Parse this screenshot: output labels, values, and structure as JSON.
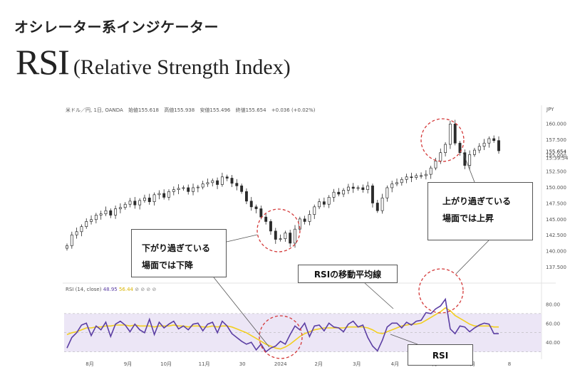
{
  "header": {
    "subtitle": "オシレーター系インジケーター",
    "title_main": "RSI",
    "title_sub": "(Relative Strength Index)"
  },
  "chart_info": {
    "symbol": "米ドル／円, 1日, OANDA",
    "open": "始値155.618",
    "high": "高値155.938",
    "low": "安値155.496",
    "close": "終値155.654",
    "change": "+0.036 (+0.02%)",
    "currency": "JPY",
    "last_price": "155.654",
    "countdown": "15:39:54"
  },
  "rsi_info": {
    "label": "RSI (14, close)",
    "rsi_value": "48.95",
    "ma_value": "56.44",
    "icons": "⊘ ⊘ ⊘ ⊘"
  },
  "callouts": {
    "oversold": [
      "下がり過ぎている",
      "場面では下降"
    ],
    "overbought": [
      "上がり過ぎている",
      "場面では上昇"
    ],
    "rsi_ma": "RSIの移動平均線",
    "rsi": "RSI"
  },
  "colors": {
    "candle": "#2b2b2b",
    "rsi_line": "#5b3ea3",
    "rsi_ma": "#f2cf1e",
    "band_fill": "#ece6f6",
    "circle": "#d43a3a"
  },
  "chart_data": [
    {
      "type": "candlestick",
      "y_ticks": [
        137.5,
        140.0,
        142.5,
        145.0,
        147.5,
        150.0,
        152.5,
        155.0,
        157.5,
        160.0
      ],
      "ylim": [
        136.5,
        161.5
      ],
      "x_ticks": [
        "8月",
        "9月",
        "10月",
        "11月",
        "30",
        "2024",
        "2月",
        "3月",
        "4月",
        "5月",
        "6月",
        "8"
      ],
      "close_series": [
        140.8,
        142.5,
        143.0,
        143.8,
        144.6,
        144.9,
        145.6,
        145.8,
        146.3,
        145.6,
        146.6,
        146.8,
        147.3,
        147.8,
        147.2,
        147.9,
        148.3,
        147.7,
        148.8,
        149.0,
        148.4,
        149.3,
        149.6,
        149.8,
        149.9,
        149.3,
        149.9,
        150.0,
        150.5,
        150.7,
        151.0,
        150.4,
        151.6,
        151.4,
        150.6,
        150.2,
        149.3,
        147.8,
        146.9,
        146.6,
        145.3,
        144.6,
        143.1,
        141.8,
        141.9,
        142.8,
        141.2,
        143.4,
        145.0,
        144.6,
        145.7,
        146.9,
        147.7,
        147.3,
        148.4,
        149.2,
        148.9,
        149.5,
        150.0,
        149.8,
        149.9,
        149.6,
        150.2,
        147.5,
        146.3,
        148.3,
        149.9,
        150.5,
        150.7,
        151.2,
        151.6,
        151.5,
        151.8,
        151.8,
        152.0,
        153.0,
        154.1,
        155.4,
        156.7,
        159.9,
        156.9,
        155.4,
        153.4,
        155.1,
        155.8,
        156.4,
        156.9,
        157.6,
        157.3,
        155.7
      ],
      "last_close": 155.654
    },
    {
      "type": "line",
      "title": "RSI (14, close)",
      "y_ticks": [
        40.0,
        60.0,
        80.0
      ],
      "ylim": [
        26,
        90
      ],
      "overbought": 70,
      "oversold": 30,
      "series": [
        {
          "name": "RSI",
          "values": [
            34,
            45,
            50,
            58,
            60,
            47,
            57,
            53,
            61,
            46,
            59,
            62,
            58,
            51,
            59,
            53,
            50,
            64,
            48,
            61,
            55,
            59,
            62,
            54,
            57,
            53,
            59,
            60,
            52,
            59,
            61,
            50,
            62,
            57,
            49,
            45,
            41,
            38,
            40,
            32,
            38,
            30,
            34,
            36,
            41,
            38,
            48,
            57,
            53,
            60,
            46,
            57,
            58,
            52,
            60,
            56,
            55,
            51,
            59,
            62,
            56,
            58,
            45,
            36,
            31,
            42,
            56,
            60,
            60,
            55,
            61,
            58,
            62,
            63,
            71,
            70,
            75,
            78,
            85,
            54,
            49,
            57,
            56,
            51,
            55,
            58,
            60,
            59,
            49,
            49
          ]
        },
        {
          "name": "RSI MA",
          "values": [
            48,
            50,
            51,
            53,
            55,
            55,
            56,
            56,
            57,
            57,
            58,
            58,
            58,
            57,
            58,
            57,
            57,
            57,
            56,
            57,
            57,
            57,
            58,
            57,
            57,
            56,
            57,
            57,
            56,
            56,
            57,
            56,
            57,
            57,
            56,
            54,
            52,
            50,
            47,
            44,
            41,
            38,
            36,
            34,
            33,
            35,
            38,
            42,
            46,
            49,
            51,
            53,
            54,
            55,
            55,
            55,
            55,
            55,
            56,
            56,
            56,
            56,
            55,
            53,
            50,
            49,
            51,
            53,
            55,
            57,
            58,
            59,
            59,
            60,
            63,
            66,
            69,
            72,
            76,
            73,
            68,
            65,
            62,
            59,
            57,
            57,
            57,
            57,
            56,
            56
          ]
        }
      ]
    }
  ]
}
